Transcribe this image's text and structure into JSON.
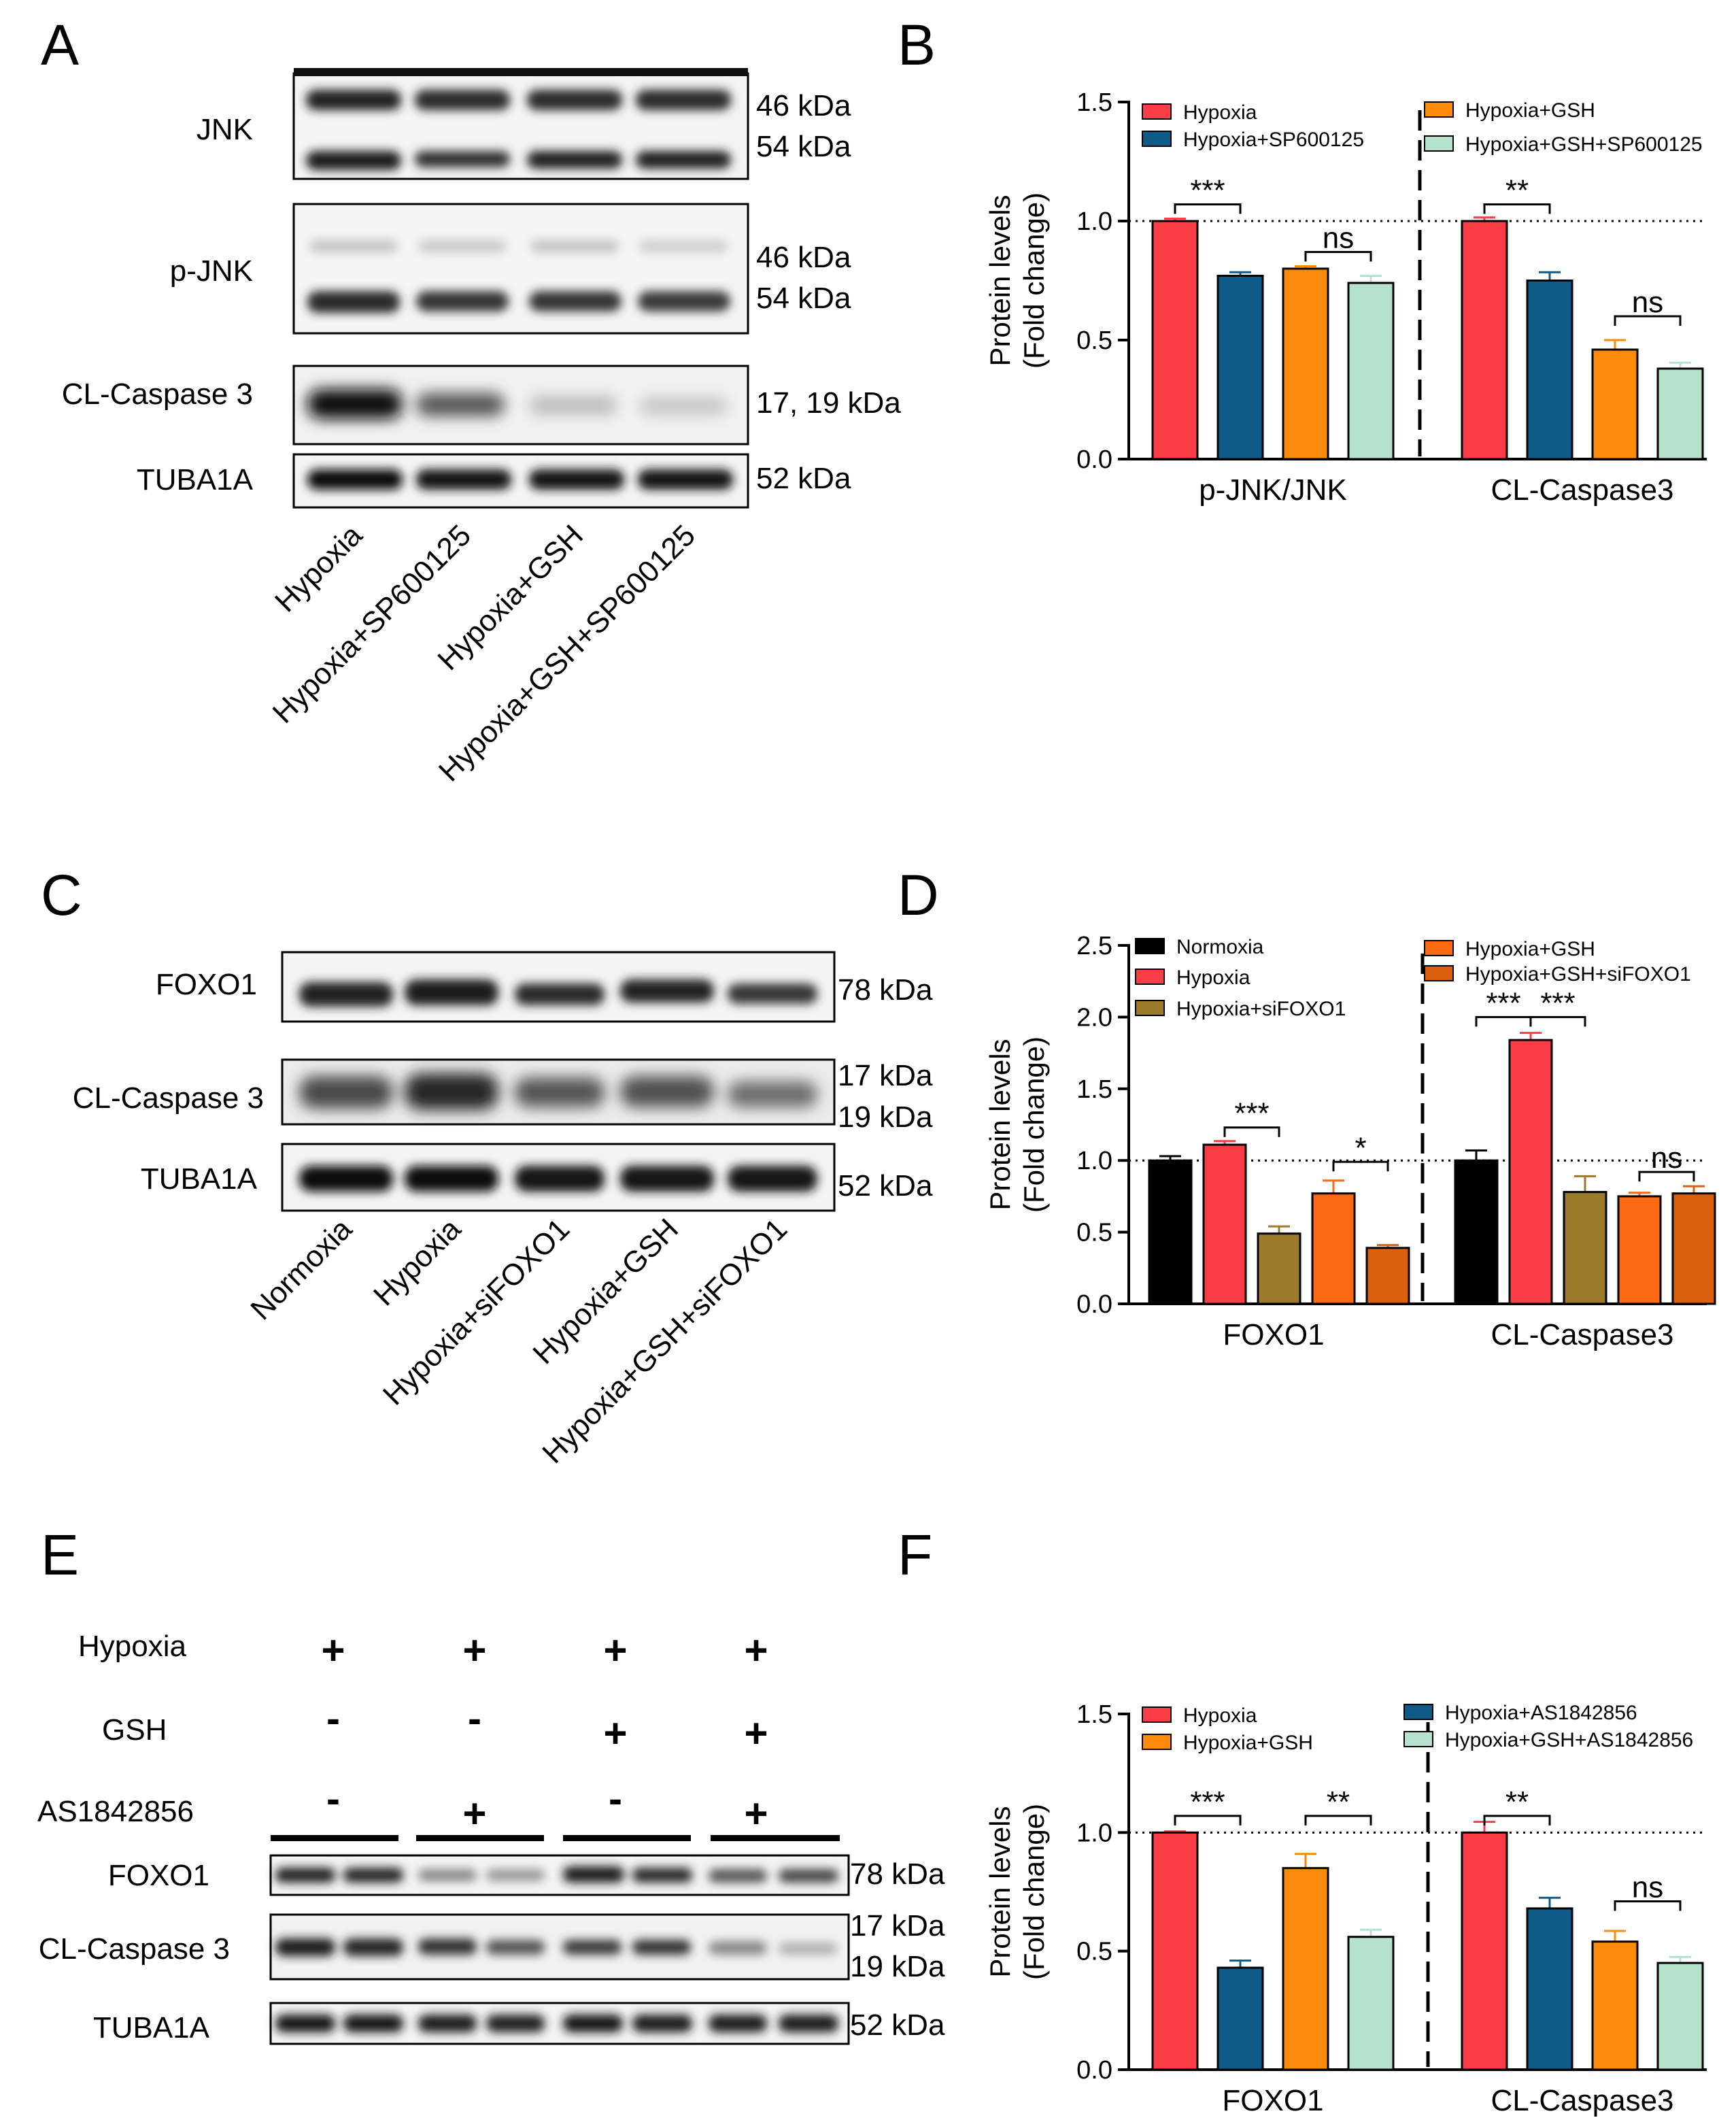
{
  "panels": {
    "A": {
      "label": "A",
      "rows": [
        {
          "name": "JNK",
          "kda": [
            "46 kDa",
            "54 kDa"
          ]
        },
        {
          "name": "p-JNK",
          "kda": [
            "46 kDa",
            "54 kDa"
          ]
        },
        {
          "name": "CL-Caspase 3",
          "kda": [
            "17, 19 kDa"
          ]
        },
        {
          "name": "TUBA1A",
          "kda": [
            "52 kDa"
          ]
        }
      ],
      "lanes": [
        "Hypoxia",
        "Hypoxia+SP600125",
        "Hypoxia+GSH",
        "Hypoxia+GSH+SP600125"
      ]
    },
    "C": {
      "label": "C",
      "rows": [
        {
          "name": "FOXO1",
          "kda": [
            "78 kDa"
          ]
        },
        {
          "name": "CL-Caspase 3",
          "kda": [
            "17 kDa",
            "19 kDa"
          ]
        },
        {
          "name": "TUBA1A",
          "kda": [
            "52 kDa"
          ]
        }
      ],
      "lanes": [
        "Normoxia",
        "Hypoxia",
        "Hypoxia+siFOXO1",
        "Hypoxia+GSH",
        "Hypoxia+GSH+siFOXO1"
      ]
    },
    "E": {
      "label": "E",
      "treatments": [
        {
          "name": "Hypoxia",
          "signs": [
            "+",
            "+",
            "+",
            "+"
          ]
        },
        {
          "name": "GSH",
          "signs": [
            "-",
            "-",
            "+",
            "+"
          ]
        },
        {
          "name": "AS1842856",
          "signs": [
            "-",
            "+",
            "-",
            "+"
          ]
        }
      ],
      "rows": [
        {
          "name": "FOXO1",
          "kda": [
            "78 kDa"
          ]
        },
        {
          "name": "CL-Caspase 3",
          "kda": [
            "17 kDa",
            "19 kDa"
          ]
        },
        {
          "name": "TUBA1A",
          "kda": [
            "52 kDa"
          ]
        }
      ]
    }
  },
  "chart_data": [
    {
      "panel": "B",
      "type": "bar",
      "ylabel": [
        "Protein levels",
        "(Fold change)"
      ],
      "ylim": [
        0,
        1.5
      ],
      "yticks": [
        "0.0",
        "0.5",
        "1.0",
        "1.5"
      ],
      "reference_line": 1.0,
      "categories": [
        "p-JNK/JNK",
        "CL-Caspase3"
      ],
      "series": [
        {
          "name": "Hypoxia",
          "color": "#fb3e45",
          "values": [
            1.0,
            1.0
          ],
          "errors": [
            0.01,
            0.015
          ]
        },
        {
          "name": "Hypoxia+SP600125",
          "color": "#0e5b87",
          "values": [
            0.77,
            0.75
          ],
          "errors": [
            0.015,
            0.035
          ]
        },
        {
          "name": "Hypoxia+GSH",
          "color": "#fc8a0b",
          "values": [
            0.8,
            0.46
          ],
          "errors": [
            0.01,
            0.04
          ]
        },
        {
          "name": "Hypoxia+GSH+SP600125",
          "color": "#b5e3cd",
          "values": [
            0.74,
            0.38
          ],
          "errors": [
            0.03,
            0.025
          ]
        }
      ],
      "legend": [
        {
          "series": 0,
          "name": "Hypoxia"
        },
        {
          "series": 1,
          "name": "Hypoxia+SP600125"
        },
        {
          "series": 2,
          "name": "Hypoxia+GSH"
        },
        {
          "series": 3,
          "name": "Hypoxia+GSH+SP600125"
        }
      ],
      "significance": [
        {
          "text": "***",
          "group": 0,
          "from": 0,
          "to": 1,
          "y": 1.07
        },
        {
          "text": "ns",
          "group": 0,
          "from": 2,
          "to": 3,
          "y": 0.87
        },
        {
          "text": "**",
          "group": 1,
          "from": 0,
          "to": 1,
          "y": 1.07
        },
        {
          "text": "ns",
          "group": 1,
          "from": 2,
          "to": 3,
          "y": 0.6
        }
      ]
    },
    {
      "panel": "D",
      "type": "bar",
      "ylabel": [
        "Protein levels",
        "(Fold change)"
      ],
      "ylim": [
        0,
        2.5
      ],
      "yticks": [
        "0.0",
        "0.5",
        "1.0",
        "1.5",
        "2.0",
        "2.5"
      ],
      "reference_line": 1.0,
      "categories": [
        "FOXO1",
        "CL-Caspase3"
      ],
      "series": [
        {
          "name": "Normoxia",
          "color": "#000000",
          "values": [
            1.0,
            1.0
          ],
          "errors": [
            0.03,
            0.07
          ]
        },
        {
          "name": "Hypoxia",
          "color": "#fb3e45",
          "values": [
            1.11,
            1.84
          ],
          "errors": [
            0.025,
            0.05
          ]
        },
        {
          "name": "Hypoxia+siFOXO1",
          "color": "#9b7b2b",
          "values": [
            0.49,
            0.78
          ],
          "errors": [
            0.05,
            0.11
          ]
        },
        {
          "name": "Hypoxia+GSH",
          "color": "#fb6a12",
          "values": [
            0.77,
            0.75
          ],
          "errors": [
            0.09,
            0.025
          ]
        },
        {
          "name": "Hypoxia+GSH+siFOXO1",
          "color": "#dc5f0e",
          "values": [
            0.39,
            0.77
          ],
          "errors": [
            0.02,
            0.05
          ]
        }
      ],
      "legend": [
        {
          "series": 0,
          "name": "Normoxia"
        },
        {
          "series": 1,
          "name": "Hypoxia"
        },
        {
          "series": 2,
          "name": "Hypoxia+siFOXO1"
        },
        {
          "series": 3,
          "name": "Hypoxia+GSH"
        },
        {
          "series": 4,
          "name": "Hypoxia+GSH+siFOXO1"
        }
      ],
      "significance": [
        {
          "text": "***",
          "group": 0,
          "from": 1,
          "to": 2,
          "y": 1.23
        },
        {
          "text": "*",
          "group": 0,
          "from": 3,
          "to": 4,
          "y": 0.99
        },
        {
          "text": "***",
          "group": 1,
          "from": 0,
          "to": 1,
          "y": 2.0
        },
        {
          "text": "***",
          "group": 1,
          "from": 1,
          "to": 2,
          "y": 2.0
        },
        {
          "text": "ns",
          "group": 1,
          "from": 3,
          "to": 4,
          "y": 0.92
        }
      ]
    },
    {
      "panel": "F",
      "type": "bar",
      "ylabel": [
        "Protein levels",
        "(Fold change)"
      ],
      "ylim": [
        0,
        1.5
      ],
      "yticks": [
        "0.0",
        "0.5",
        "1.0",
        "1.5"
      ],
      "reference_line": 1.0,
      "categories": [
        "FOXO1",
        "CL-Caspase3"
      ],
      "series": [
        {
          "name": "Hypoxia",
          "color": "#fb3e45",
          "values": [
            1.0,
            1.0
          ],
          "errors": [
            0.005,
            0.045
          ]
        },
        {
          "name": "Hypoxia+AS1842856",
          "color": "#0e5b87",
          "values": [
            0.43,
            0.68
          ],
          "errors": [
            0.03,
            0.045
          ]
        },
        {
          "name": "Hypoxia+GSH",
          "color": "#fc8a0b",
          "values": [
            0.85,
            0.54
          ],
          "errors": [
            0.06,
            0.045
          ]
        },
        {
          "name": "Hypoxia+GSH+AS1842856",
          "color": "#b5e3cd",
          "values": [
            0.56,
            0.45
          ],
          "errors": [
            0.03,
            0.025
          ]
        }
      ],
      "legend": [
        {
          "series": 0,
          "name": "Hypoxia"
        },
        {
          "series": 2,
          "name": "Hypoxia+GSH"
        },
        {
          "series": 1,
          "name": "Hypoxia+AS1842856"
        },
        {
          "series": 3,
          "name": "Hypoxia+GSH+AS1842856"
        }
      ],
      "significance": [
        {
          "text": "***",
          "group": 0,
          "from": 0,
          "to": 1,
          "y": 1.07
        },
        {
          "text": "**",
          "group": 0,
          "from": 2,
          "to": 3,
          "y": 1.07
        },
        {
          "text": "**",
          "group": 1,
          "from": 0,
          "to": 1,
          "y": 1.07
        },
        {
          "text": "ns",
          "group": 1,
          "from": 2,
          "to": 3,
          "y": 0.71
        }
      ]
    }
  ],
  "panel_labels": {
    "B": "B",
    "D": "D",
    "F": "F"
  }
}
